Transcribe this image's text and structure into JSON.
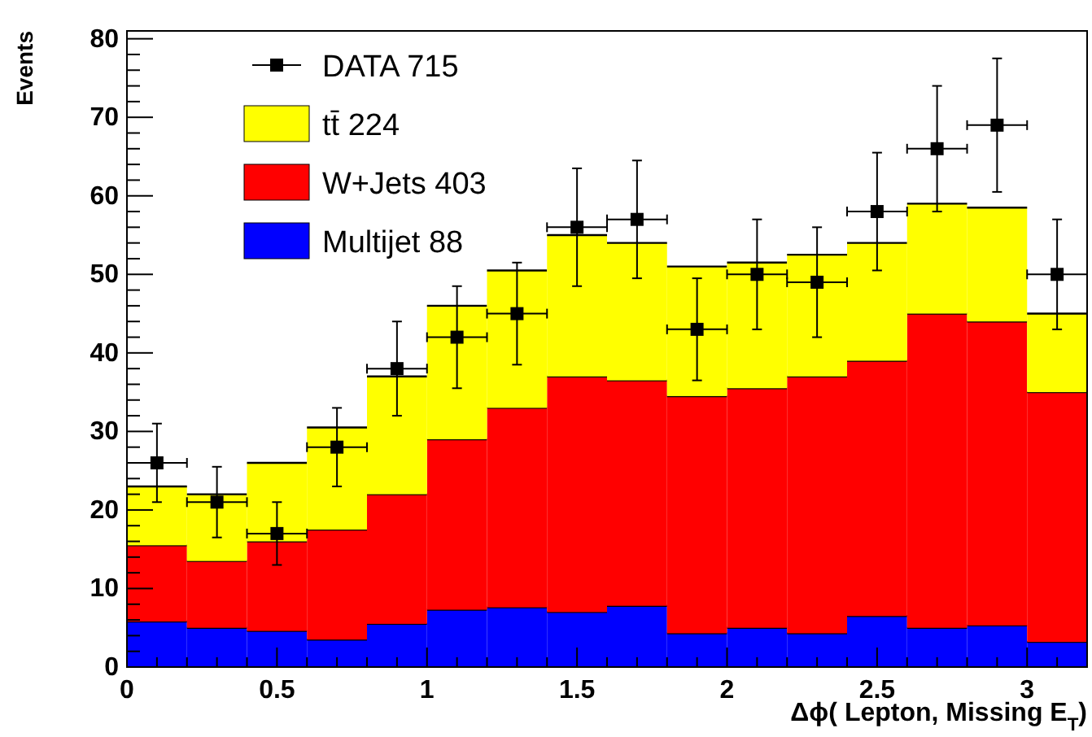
{
  "chart_data": {
    "type": "bar",
    "xlabel": "Δϕ( Lepton, Missing E$_{T}$)",
    "ylabel": "Events",
    "x": [
      0.1,
      0.3,
      0.5,
      0.7,
      0.9,
      1.1,
      1.3,
      1.5,
      1.7,
      1.9,
      2.1,
      2.3,
      2.5,
      2.7,
      2.9,
      3.1
    ],
    "stacked": true,
    "legend": "top left",
    "marker": "square",
    "xlim": [
      0,
      3.2
    ],
    "ylim": [
      0,
      81
    ],
    "xticks": [
      0,
      {
        "value": 0.1,
        "label": null
      },
      {
        "value": 0.2,
        "label": null
      },
      {
        "value": 0.3,
        "label": null
      },
      {
        "value": 0.4,
        "label": null
      },
      0.5,
      {
        "value": 0.6,
        "label": null
      },
      {
        "value": 0.7,
        "label": null
      },
      {
        "value": 0.8,
        "label": null
      },
      {
        "value": 0.9,
        "label": null
      },
      1,
      {
        "value": 1.1,
        "label": null
      },
      {
        "value": 1.2,
        "label": null
      },
      {
        "value": 1.3,
        "label": null
      },
      {
        "value": 1.4,
        "label": null
      },
      1.5,
      {
        "value": 1.6,
        "label": null
      },
      {
        "value": 1.7,
        "label": null
      },
      {
        "value": 1.8,
        "label": null
      },
      {
        "value": 1.9,
        "label": null
      },
      2,
      {
        "value": 2.1,
        "label": null
      },
      {
        "value": 2.2,
        "label": null
      },
      {
        "value": 2.3,
        "label": null
      },
      {
        "value": 2.4,
        "label": null
      },
      2.5,
      {
        "value": 2.6,
        "label": null
      },
      {
        "value": 2.7,
        "label": null
      },
      {
        "value": 2.8,
        "label": null
      },
      {
        "value": 2.9,
        "label": null
      },
      3,
      {
        "value": 3.1,
        "label": null
      }
    ],
    "yticks": [
      0,
      {
        "value": 2,
        "label": null
      },
      {
        "value": 4,
        "label": null
      },
      {
        "value": 6,
        "label": null
      },
      {
        "value": 8,
        "label": null
      },
      10,
      {
        "value": 12,
        "label": null
      },
      {
        "value": 14,
        "label": null
      },
      {
        "value": 16,
        "label": null
      },
      {
        "value": 18,
        "label": null
      },
      20,
      {
        "value": 22,
        "label": null
      },
      {
        "value": 24,
        "label": null
      },
      {
        "value": 26,
        "label": null
      },
      {
        "value": 28,
        "label": null
      },
      30,
      {
        "value": 32,
        "label": null
      },
      {
        "value": 34,
        "label": null
      },
      {
        "value": 36,
        "label": null
      },
      {
        "value": 38,
        "label": null
      },
      40,
      {
        "value": 42,
        "label": null
      },
      {
        "value": 44,
        "label": null
      },
      {
        "value": 46,
        "label": null
      },
      {
        "value": 48,
        "label": null
      },
      50,
      {
        "value": 52,
        "label": null
      },
      {
        "value": 54,
        "label": null
      },
      {
        "value": 56,
        "label": null
      },
      {
        "value": 58,
        "label": null
      },
      60,
      {
        "value": 62,
        "label": null
      },
      {
        "value": 64,
        "label": null
      },
      {
        "value": 66,
        "label": null
      },
      {
        "value": 68,
        "label": null
      },
      70,
      {
        "value": 72,
        "label": null
      },
      {
        "value": 74,
        "label": null
      },
      {
        "value": 76,
        "label": null
      },
      {
        "value": 78,
        "label": null
      },
      80
    ],
    "series": [
      {
        "name": "DATA 715",
        "type": "scatter",
        "color": "#000000",
        "x": [
          0.1,
          0.3,
          0.5,
          0.7,
          0.9,
          1.1,
          1.3,
          1.5,
          1.7,
          1.9,
          2.1,
          2.3,
          2.5,
          2.7,
          2.9,
          3.1
        ],
        "values": [
          26,
          21,
          17,
          28,
          38,
          42,
          45,
          56,
          57,
          43,
          50,
          49,
          58,
          66,
          69,
          50
        ],
        "errors": [
          5,
          4.5,
          4,
          5,
          6,
          6.5,
          6.5,
          7.5,
          7.5,
          6.5,
          7,
          7,
          7.5,
          8,
          8.5,
          7
        ],
        "xerrors": [
          0.1,
          0.1,
          0.1,
          0.1,
          0.1,
          0.1,
          0.1,
          0.1,
          0.1,
          0.1,
          0.1,
          0.1,
          0.1,
          0.1,
          0.1,
          0.1
        ]
      },
      {
        "name": "Multijet 88",
        "color": "#0000ff",
        "values": [
          5.8,
          5,
          4.6,
          3.5,
          5.5,
          7.3,
          7.6,
          7,
          7.8,
          4.3,
          5,
          4.3,
          6.5,
          5,
          5.3,
          3.2
        ]
      },
      {
        "name": "W+Jets 403",
        "color": "#ff0000",
        "values": [
          9.7,
          8.5,
          11.4,
          14,
          16.5,
          21.7,
          25.4,
          30,
          28.7,
          30.2,
          30.5,
          32.7,
          32.5,
          40,
          38.7,
          31.8
        ]
      },
      {
        "name": "tt̄ 224",
        "color": "#ffff00",
        "values": [
          7.5,
          8.5,
          10,
          13,
          15,
          17,
          17.5,
          18,
          17.5,
          16.5,
          16,
          15.5,
          15,
          14,
          14.5,
          10
        ]
      }
    ]
  }
}
